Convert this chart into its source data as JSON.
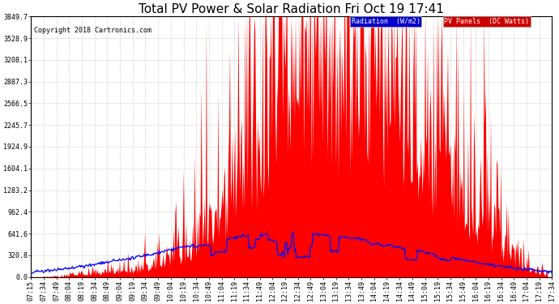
{
  "title": "Total PV Power & Solar Radiation Fri Oct 19 17:41",
  "copyright": "Copyright 2018 Cartronics.com",
  "background_color": "#ffffff",
  "plot_bg_color": "#ffffff",
  "grid_color": "#bbbbbb",
  "ytick_labels": [
    "0.0",
    "320.8",
    "641.6",
    "962.4",
    "1283.2",
    "1604.1",
    "1924.9",
    "2245.7",
    "2566.5",
    "2887.3",
    "3208.1",
    "3528.9",
    "3849.7"
  ],
  "ytick_values": [
    0.0,
    320.8,
    641.6,
    962.4,
    1283.2,
    1604.1,
    1924.9,
    2245.7,
    2566.5,
    2887.3,
    3208.1,
    3528.9,
    3849.7
  ],
  "ymax": 3849.7,
  "legend_radiation_label": "Radiation  (W/m2)",
  "legend_pv_label": "PV Panels  (DC Watts)",
  "pv_color": "#ff0000",
  "radiation_color": "#0000ff",
  "title_fontsize": 11,
  "copyright_fontsize": 6,
  "tick_fontsize": 6,
  "legend_fontsize": 6,
  "xtick_labels": [
    "07:15",
    "07:34",
    "07:49",
    "08:04",
    "08:19",
    "08:34",
    "08:49",
    "09:04",
    "09:19",
    "09:34",
    "09:49",
    "10:04",
    "10:19",
    "10:34",
    "10:49",
    "11:04",
    "11:19",
    "11:34",
    "11:49",
    "12:04",
    "12:19",
    "12:34",
    "12:49",
    "13:04",
    "13:19",
    "13:34",
    "13:49",
    "14:04",
    "14:19",
    "14:34",
    "14:49",
    "15:04",
    "15:19",
    "15:34",
    "15:49",
    "16:04",
    "16:19",
    "16:34",
    "16:49",
    "17:04",
    "17:19",
    "17:34"
  ]
}
